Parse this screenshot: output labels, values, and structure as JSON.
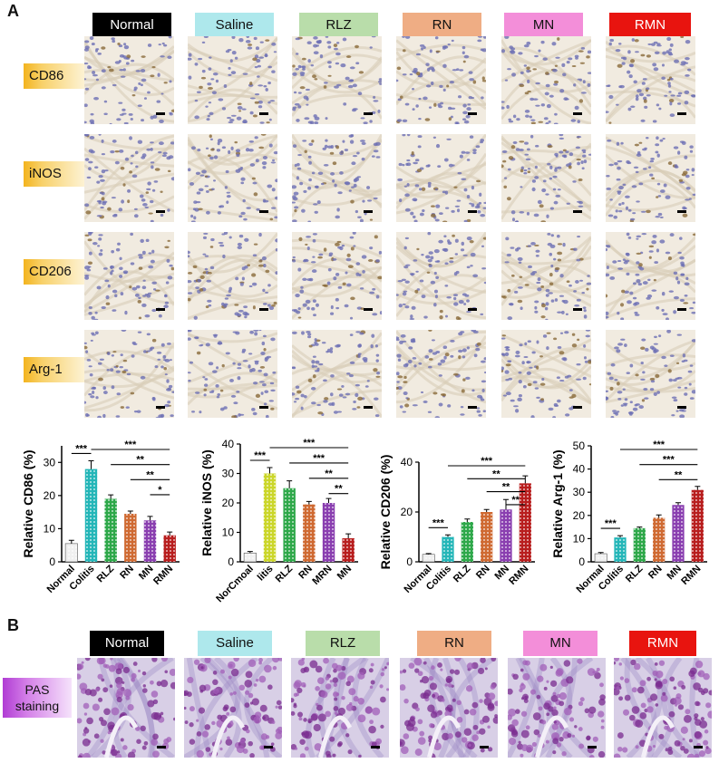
{
  "panel_a": {
    "letter": "A",
    "groups": [
      {
        "label": "Normal",
        "bg": "#000000",
        "fg": "#ffffff"
      },
      {
        "label": "Saline",
        "bg": "#aee8ec",
        "fg": "#111111"
      },
      {
        "label": "RLZ",
        "bg": "#b9ddaa",
        "fg": "#111111"
      },
      {
        "label": "RN",
        "bg": "#efad84",
        "fg": "#111111"
      },
      {
        "label": "MN",
        "bg": "#f38ed9",
        "fg": "#111111"
      },
      {
        "label": "RMN",
        "bg": "#e8140f",
        "fg": "#ffffff"
      }
    ],
    "rows": [
      "CD86",
      "iNOS",
      "CD206",
      "Arg-1"
    ]
  },
  "panel_b": {
    "letter": "B",
    "groups": [
      {
        "label": "Normal",
        "bg": "#000000",
        "fg": "#ffffff"
      },
      {
        "label": "Saline",
        "bg": "#aee8ec",
        "fg": "#111111"
      },
      {
        "label": "RLZ",
        "bg": "#b9ddaa",
        "fg": "#111111"
      },
      {
        "label": "RN",
        "bg": "#efad84",
        "fg": "#111111"
      },
      {
        "label": "MN",
        "bg": "#f38ed9",
        "fg": "#111111"
      },
      {
        "label": "RMN",
        "bg": "#e8140f",
        "fg": "#ffffff"
      }
    ],
    "row_label_line1": "PAS",
    "row_label_line2": "staining"
  },
  "chart_data": [
    {
      "type": "bar",
      "ylabel": "Relative CD86 (%)",
      "categories": [
        "Normal",
        "Colitis",
        "RLZ",
        "RN",
        "MN",
        "RMN"
      ],
      "values": [
        5.5,
        28,
        19,
        14.5,
        12.5,
        8
      ],
      "errors": [
        1,
        2.5,
        1.2,
        0.8,
        1.2,
        1
      ],
      "ylim": [
        0,
        35
      ],
      "yticks": [
        0,
        10,
        20,
        30
      ],
      "colors": [
        "#f0f0f0",
        "#24b6b8",
        "#2ea84a",
        "#cf6a32",
        "#8a3fb0",
        "#b81e1e"
      ],
      "significance": [
        [
          "Normal",
          "Colitis",
          "***"
        ],
        [
          "Colitis",
          "RMN",
          "***"
        ],
        [
          "RLZ",
          "RMN",
          "**"
        ],
        [
          "RN",
          "RMN",
          "**"
        ],
        [
          "MN",
          "RMN",
          "*"
        ]
      ]
    },
    {
      "type": "bar",
      "ylabel": "Relative iNOS (%)",
      "categories": [
        "Normal",
        "Colitis",
        "RLZ",
        "RN",
        "MRN",
        "MN"
      ],
      "tick_labels_printed": [
        "NorCmoal",
        "litis",
        "RLZ",
        "RN",
        "MRN",
        "MN"
      ],
      "values": [
        3,
        30,
        25,
        19.5,
        20,
        8
      ],
      "errors": [
        0.5,
        2,
        2.5,
        1,
        1.5,
        1.5
      ],
      "ylim": [
        0,
        40
      ],
      "yticks": [
        0,
        10,
        20,
        30,
        40
      ],
      "colors": [
        "#f0f0f0",
        "#cbd62a",
        "#2ea84a",
        "#cf6a32",
        "#8a3fb0",
        "#b81e1e"
      ],
      "significance": [
        [
          "Normal",
          "Colitis",
          "***"
        ],
        [
          "Colitis",
          "MN",
          "***"
        ],
        [
          "RLZ",
          "MN",
          "***"
        ],
        [
          "RN",
          "MN",
          "**"
        ],
        [
          "MRN",
          "MN",
          "**"
        ]
      ]
    },
    {
      "type": "bar",
      "ylabel": "Relative CD206 (%)",
      "categories": [
        "Normal",
        "Colitis",
        "RLZ",
        "RN",
        "MN",
        "RMN"
      ],
      "values": [
        3,
        10,
        16,
        20,
        21,
        31.5
      ],
      "errors": [
        0.3,
        0.8,
        1.2,
        1,
        4,
        3
      ],
      "ylim": [
        0,
        40
      ],
      "yticks": [
        0,
        20,
        40
      ],
      "colors": [
        "#f0f0f0",
        "#24b6b8",
        "#2ea84a",
        "#cf6a32",
        "#8a3fb0",
        "#b81e1e"
      ],
      "significance": [
        [
          "Normal",
          "Colitis",
          "***"
        ],
        [
          "Colitis",
          "RMN",
          "***"
        ],
        [
          "RLZ",
          "RMN",
          "**"
        ],
        [
          "RN",
          "RMN",
          "**"
        ],
        [
          "MN",
          "RMN",
          "**"
        ]
      ]
    },
    {
      "type": "bar",
      "ylabel": "Relative Arg-1 (%)",
      "categories": [
        "Normal",
        "Colitis",
        "RLZ",
        "RN",
        "MN",
        "RMN"
      ],
      "values": [
        3.5,
        10.5,
        14.5,
        19,
        24.5,
        31
      ],
      "errors": [
        0.5,
        0.8,
        0.5,
        1.2,
        1,
        1.5
      ],
      "ylim": [
        0,
        50
      ],
      "yticks": [
        0,
        10,
        20,
        30,
        40,
        50
      ],
      "colors": [
        "#f0f0f0",
        "#24b6b8",
        "#2ea84a",
        "#cf6a32",
        "#8a3fb0",
        "#b81e1e"
      ],
      "significance": [
        [
          "Normal",
          "Colitis",
          "***"
        ],
        [
          "Colitis",
          "RMN",
          "***"
        ],
        [
          "RLZ",
          "RMN",
          "***"
        ],
        [
          "RN",
          "RMN",
          "**"
        ]
      ]
    }
  ]
}
